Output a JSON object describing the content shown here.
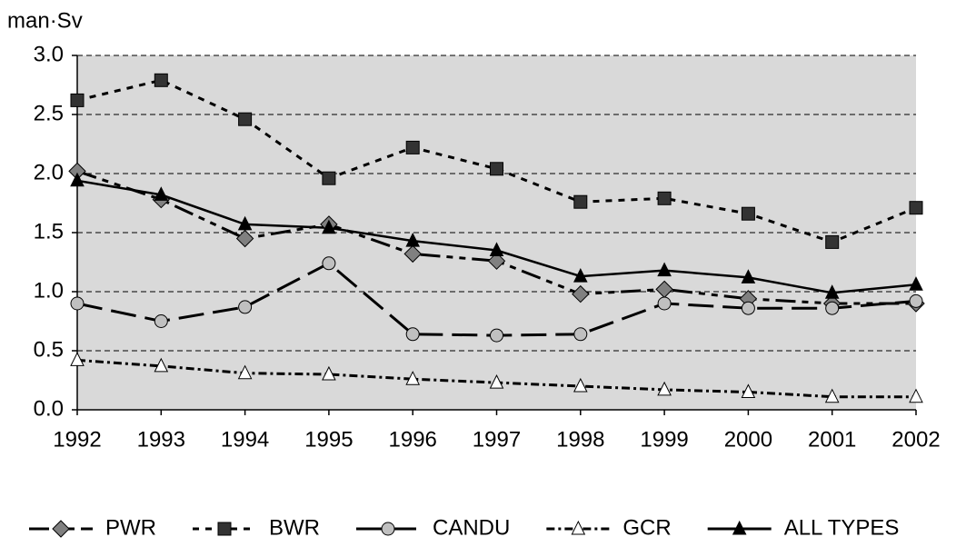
{
  "chart_data": {
    "type": "line",
    "y_label": "man·Sv",
    "categories": [
      "1992",
      "1993",
      "1994",
      "1995",
      "1996",
      "1997",
      "1998",
      "1999",
      "2000",
      "2001",
      "2002"
    ],
    "ylim": [
      0,
      3
    ],
    "yticks": [
      {
        "value": 0,
        "label": "0.0"
      },
      {
        "value": 0.5,
        "label": "0.5"
      },
      {
        "value": 1,
        "label": "1.0"
      },
      {
        "value": 1.5,
        "label": "1.5"
      },
      {
        "value": 2,
        "label": "2.0"
      },
      {
        "value": 2.5,
        "label": "2.5"
      },
      {
        "value": 3,
        "label": "3.0"
      }
    ],
    "grid": true,
    "legend": "bottom",
    "series": [
      {
        "name": "PWR",
        "color": "#808080",
        "marker": "diamond",
        "dash": "22,7,7,7,7,7",
        "values": [
          2.02,
          1.78,
          1.45,
          1.57,
          1.32,
          1.26,
          0.98,
          1.02,
          0.94,
          0.9,
          0.9
        ]
      },
      {
        "name": "BWR",
        "color": "#333333",
        "marker": "square",
        "dash": "7,7",
        "values": [
          2.62,
          2.79,
          2.46,
          1.96,
          2.22,
          2.04,
          1.76,
          1.79,
          1.66,
          1.42,
          1.71
        ]
      },
      {
        "name": "CANDU",
        "color": "#c0c0c0",
        "marker": "circle",
        "dash": "28,10",
        "values": [
          0.9,
          0.75,
          0.87,
          1.24,
          0.64,
          0.63,
          0.64,
          0.9,
          0.86,
          0.86,
          0.92
        ]
      },
      {
        "name": "GCR",
        "color": "#ffffff",
        "marker": "triangle",
        "dash": "9,4,3,4",
        "values": [
          0.42,
          0.37,
          0.31,
          0.3,
          0.26,
          0.23,
          0.2,
          0.17,
          0.15,
          0.11,
          0.11
        ]
      },
      {
        "name": "ALL TYPES",
        "color": "#000000",
        "marker": "triangle",
        "dash": "none",
        "values": [
          1.94,
          1.82,
          1.57,
          1.54,
          1.43,
          1.35,
          1.13,
          1.18,
          1.12,
          0.99,
          1.06
        ]
      }
    ]
  }
}
